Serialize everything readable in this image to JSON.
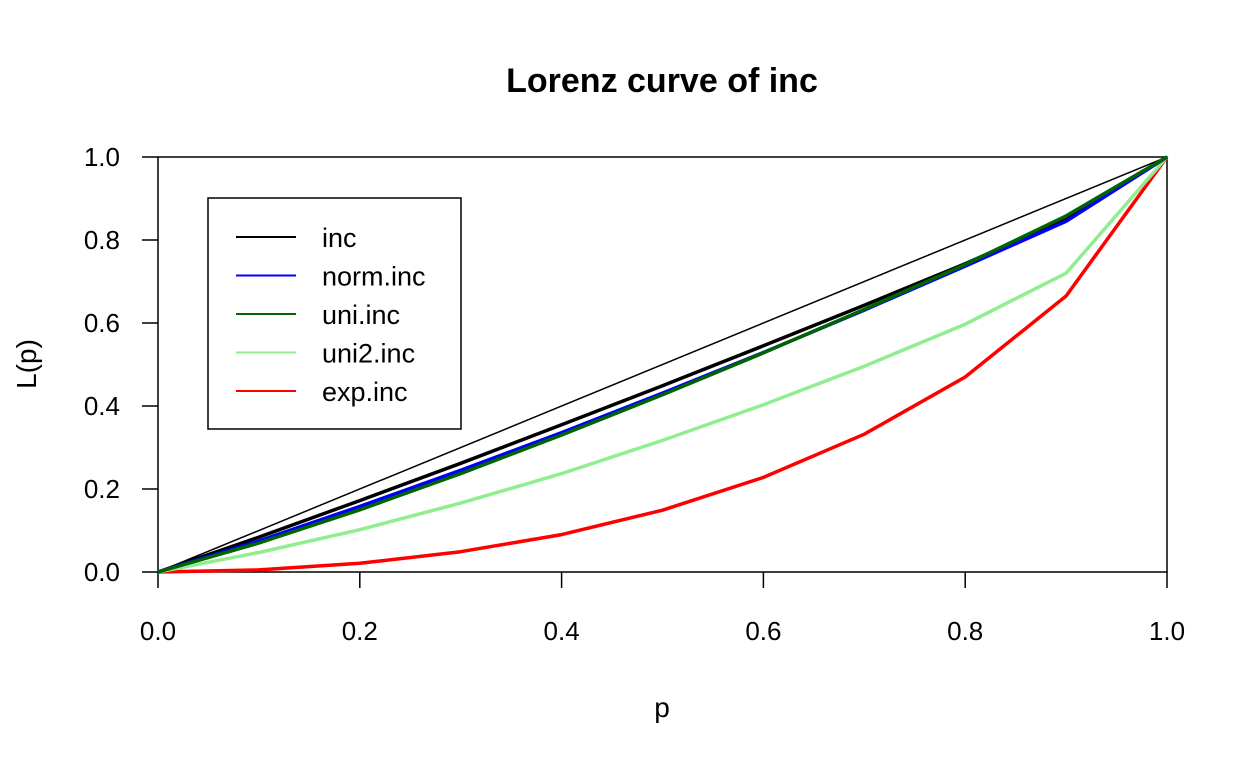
{
  "chart_data": {
    "type": "line",
    "title": "Lorenz curve of inc",
    "xlabel": "p",
    "ylabel": "L(p)",
    "xlim": [
      0,
      1
    ],
    "ylim": [
      0,
      1
    ],
    "x_ticks": [
      "0.0",
      "0.2",
      "0.4",
      "0.6",
      "0.8",
      "1.0"
    ],
    "y_ticks": [
      "0.0",
      "0.2",
      "0.4",
      "0.6",
      "0.8",
      "1.0"
    ],
    "grid": false,
    "legend_position": "top-left",
    "equality_line": {
      "x": [
        0,
        1
      ],
      "y": [
        0,
        1
      ],
      "color": "#000000"
    },
    "x": [
      0,
      0.1,
      0.2,
      0.3,
      0.4,
      0.5,
      0.6,
      0.7,
      0.8,
      0.9,
      1.0
    ],
    "series": [
      {
        "name": "inc",
        "color": "#000000",
        "values": [
          0,
          0.084,
          0.172,
          0.262,
          0.355,
          0.449,
          0.545,
          0.643,
          0.743,
          0.85,
          1.0
        ]
      },
      {
        "name": "norm.inc",
        "color": "#0000ff",
        "values": [
          0,
          0.075,
          0.158,
          0.245,
          0.336,
          0.431,
          0.529,
          0.631,
          0.737,
          0.845,
          1.0
        ]
      },
      {
        "name": "uni.inc",
        "color": "#006400",
        "values": [
          0,
          0.07,
          0.15,
          0.237,
          0.33,
          0.427,
          0.528,
          0.633,
          0.741,
          0.858,
          1.0
        ]
      },
      {
        "name": "uni2.inc",
        "color": "#90ee90",
        "values": [
          0,
          0.047,
          0.102,
          0.166,
          0.237,
          0.317,
          0.403,
          0.496,
          0.597,
          0.72,
          1.0
        ]
      },
      {
        "name": "exp.inc",
        "color": "#ff0000",
        "values": [
          0,
          0.005,
          0.021,
          0.049,
          0.09,
          0.149,
          0.228,
          0.332,
          0.47,
          0.665,
          1.0
        ]
      }
    ]
  }
}
